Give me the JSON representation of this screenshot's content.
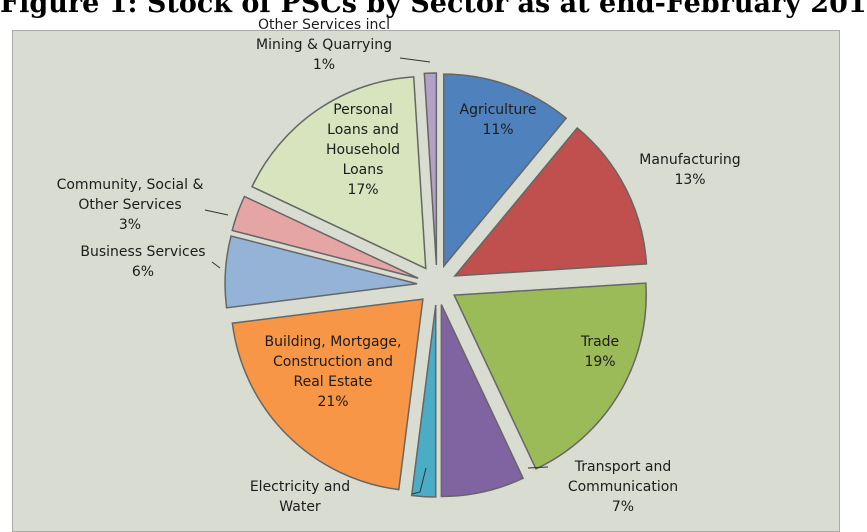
{
  "chart_data": {
    "type": "pie",
    "title": "Figure 1: Stock of PSCs by Sector as at end-February 201",
    "categories": [
      "Agriculture",
      "Manufacturing",
      "Trade",
      "Transport and Communication",
      "Electricity and Water",
      "Building, Mortgage, Construction and Real Estate",
      "Business Services",
      "Community, Social & Other Services",
      "Personal Loans and Household Loans",
      "Other Services incl Mining & Quarrying"
    ],
    "values": [
      11,
      13,
      19,
      7,
      2,
      21,
      6,
      3,
      17,
      1
    ],
    "value_labels": [
      "11%",
      "13%",
      "19%",
      "7%",
      null,
      "21%",
      "6%",
      "3%",
      "17%",
      "1%"
    ],
    "colors": [
      "#4f81bd",
      "#c0504d",
      "#9bbb59",
      "#8064a2",
      "#4bacc6",
      "#f79646",
      "#95b3d7",
      "#e6a5a5",
      "#d7e4bd",
      "#b3a2c7"
    ]
  }
}
